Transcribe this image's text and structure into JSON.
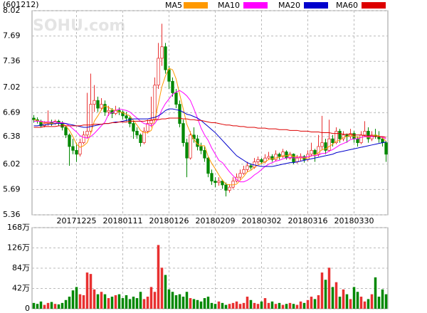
{
  "chart_data": {
    "type": "candlestick",
    "code": "(601212)",
    "watermark": "SOHU.com",
    "categories": [
      null,
      null,
      null,
      null,
      null,
      null,
      null,
      null,
      null,
      null,
      null,
      null,
      "20171225",
      null,
      null,
      null,
      null,
      null,
      null,
      null,
      null,
      null,
      null,
      null,
      null,
      "20180111",
      null,
      null,
      null,
      null,
      null,
      null,
      null,
      null,
      null,
      null,
      null,
      null,
      "20180126",
      null,
      null,
      null,
      null,
      null,
      null,
      null,
      null,
      null,
      null,
      null,
      null,
      "20180209",
      null,
      null,
      null,
      null,
      null,
      null,
      null,
      null,
      null,
      null,
      null,
      null,
      "20180302",
      null,
      null,
      null,
      null,
      null,
      null,
      null,
      null,
      null,
      null,
      null,
      null,
      "20180316",
      null,
      null,
      null,
      null,
      null,
      null,
      null,
      null,
      null,
      null,
      null,
      null,
      "20180330",
      null,
      null,
      null,
      null,
      null,
      null,
      null,
      null,
      null
    ],
    "ohlc": [
      [
        6.62,
        6.66,
        6.56,
        6.6
      ],
      [
        6.6,
        6.63,
        6.55,
        6.58
      ],
      [
        6.58,
        6.6,
        6.5,
        6.52
      ],
      [
        6.52,
        6.58,
        6.5,
        6.55
      ],
      [
        6.55,
        6.72,
        6.52,
        6.57
      ],
      [
        6.57,
        6.6,
        6.52,
        6.55
      ],
      [
        6.55,
        6.6,
        6.53,
        6.58
      ],
      [
        6.58,
        6.6,
        6.52,
        6.56
      ],
      [
        6.56,
        6.58,
        6.46,
        6.5
      ],
      [
        6.5,
        6.52,
        6.36,
        6.4
      ],
      [
        6.4,
        6.42,
        6.0,
        6.25
      ],
      [
        6.25,
        6.35,
        6.15,
        6.2
      ],
      [
        6.2,
        6.3,
        6.05,
        6.15
      ],
      [
        6.15,
        6.35,
        6.12,
        6.3
      ],
      [
        6.3,
        6.45,
        6.28,
        6.4
      ],
      [
        6.4,
        6.95,
        6.35,
        6.45
      ],
      [
        6.45,
        7.2,
        6.42,
        6.8
      ],
      [
        6.8,
        7.05,
        6.7,
        6.85
      ],
      [
        6.85,
        6.9,
        6.7,
        6.75
      ],
      [
        6.75,
        6.88,
        6.72,
        6.8
      ],
      [
        6.8,
        6.85,
        6.65,
        6.7
      ],
      [
        6.7,
        6.78,
        6.65,
        6.72
      ],
      [
        6.72,
        6.75,
        6.62,
        6.68
      ],
      [
        6.68,
        6.78,
        6.66,
        6.72
      ],
      [
        6.72,
        6.76,
        6.66,
        6.7
      ],
      [
        6.7,
        6.72,
        6.6,
        6.65
      ],
      [
        6.65,
        6.7,
        6.58,
        6.62
      ],
      [
        6.62,
        6.65,
        6.5,
        6.55
      ],
      [
        6.55,
        6.58,
        6.35,
        6.45
      ],
      [
        6.45,
        6.5,
        6.35,
        6.4
      ],
      [
        6.4,
        6.42,
        6.25,
        6.3
      ],
      [
        6.3,
        6.5,
        6.28,
        6.45
      ],
      [
        6.45,
        6.6,
        6.42,
        6.55
      ],
      [
        6.55,
        6.9,
        6.5,
        6.6
      ],
      [
        6.6,
        7.15,
        6.58,
        7.05
      ],
      [
        7.05,
        7.6,
        7.0,
        7.4
      ],
      [
        7.4,
        7.85,
        7.3,
        7.55
      ],
      [
        7.55,
        7.6,
        7.2,
        7.25
      ],
      [
        7.25,
        7.3,
        7.0,
        7.1
      ],
      [
        7.1,
        7.15,
        6.9,
        6.95
      ],
      [
        6.95,
        7.0,
        6.75,
        6.8
      ],
      [
        6.8,
        6.85,
        6.5,
        6.55
      ],
      [
        6.55,
        6.6,
        6.25,
        6.3
      ],
      [
        6.3,
        6.35,
        5.85,
        6.1
      ],
      [
        6.1,
        6.45,
        6.08,
        6.4
      ],
      [
        6.4,
        6.5,
        6.3,
        6.35
      ],
      [
        6.35,
        6.4,
        6.2,
        6.25
      ],
      [
        6.25,
        6.3,
        6.15,
        6.2
      ],
      [
        6.2,
        6.25,
        6.05,
        6.1
      ],
      [
        6.1,
        6.12,
        5.85,
        5.9
      ],
      [
        5.9,
        5.95,
        5.75,
        5.8
      ],
      [
        5.8,
        5.85,
        5.72,
        5.78
      ],
      [
        5.78,
        5.85,
        5.74,
        5.8
      ],
      [
        5.8,
        5.82,
        5.7,
        5.75
      ],
      [
        5.75,
        5.78,
        5.6,
        5.68
      ],
      [
        5.68,
        5.76,
        5.65,
        5.72
      ],
      [
        5.72,
        5.85,
        5.7,
        5.8
      ],
      [
        5.8,
        5.9,
        5.78,
        5.85
      ],
      [
        5.85,
        5.95,
        5.82,
        5.9
      ],
      [
        5.9,
        6.0,
        5.88,
        5.95
      ],
      [
        5.95,
        6.05,
        5.92,
        6.0
      ],
      [
        6.0,
        6.03,
        5.95,
        5.98
      ],
      [
        5.98,
        6.1,
        5.96,
        6.05
      ],
      [
        6.05,
        6.12,
        6.02,
        6.08
      ],
      [
        6.08,
        6.1,
        6.02,
        6.05
      ],
      [
        6.05,
        6.15,
        6.03,
        6.1
      ],
      [
        6.1,
        6.18,
        6.08,
        6.12
      ],
      [
        6.12,
        6.15,
        6.05,
        6.08
      ],
      [
        6.08,
        6.2,
        6.06,
        6.15
      ],
      [
        6.15,
        6.17,
        6.08,
        6.12
      ],
      [
        6.12,
        6.22,
        6.1,
        6.18
      ],
      [
        6.18,
        6.2,
        6.08,
        6.1
      ],
      [
        6.1,
        6.18,
        6.08,
        6.15
      ],
      [
        6.15,
        6.16,
        6.02,
        6.05
      ],
      [
        6.05,
        6.14,
        6.03,
        6.1
      ],
      [
        6.1,
        6.16,
        6.06,
        6.12
      ],
      [
        6.12,
        6.14,
        6.04,
        6.08
      ],
      [
        6.08,
        6.2,
        6.06,
        6.15
      ],
      [
        6.15,
        6.3,
        6.12,
        6.2
      ],
      [
        6.2,
        6.22,
        6.05,
        6.15
      ],
      [
        6.15,
        6.4,
        6.12,
        6.25
      ],
      [
        6.25,
        6.65,
        6.2,
        6.3
      ],
      [
        6.3,
        6.35,
        6.15,
        6.2
      ],
      [
        6.2,
        6.6,
        6.18,
        6.35
      ],
      [
        6.35,
        6.4,
        6.25,
        6.3
      ],
      [
        6.3,
        6.5,
        6.28,
        6.45
      ],
      [
        6.45,
        6.48,
        6.3,
        6.35
      ],
      [
        6.35,
        6.45,
        6.32,
        6.4
      ],
      [
        6.4,
        6.42,
        6.3,
        6.38
      ],
      [
        6.38,
        6.48,
        6.35,
        6.42
      ],
      [
        6.42,
        6.45,
        6.3,
        6.35
      ],
      [
        6.35,
        6.38,
        6.25,
        6.3
      ],
      [
        6.3,
        6.45,
        6.28,
        6.4
      ],
      [
        6.4,
        6.58,
        6.38,
        6.45
      ],
      [
        6.45,
        6.5,
        6.3,
        6.35
      ],
      [
        6.35,
        6.45,
        6.32,
        6.4
      ],
      [
        6.4,
        6.48,
        6.35,
        6.38
      ],
      [
        6.38,
        6.45,
        6.3,
        6.35
      ],
      [
        6.35,
        6.38,
        6.25,
        6.3
      ],
      [
        6.3,
        6.32,
        6.05,
        6.15
      ]
    ],
    "volume": [
      12,
      10,
      15,
      8,
      12,
      14,
      10,
      9,
      12,
      18,
      25,
      38,
      45,
      30,
      28,
      75,
      72,
      40,
      30,
      35,
      30,
      22,
      25,
      28,
      30,
      22,
      28,
      20,
      25,
      22,
      35,
      20,
      25,
      45,
      35,
      132,
      85,
      70,
      40,
      35,
      28,
      30,
      25,
      35,
      22,
      20,
      18,
      15,
      22,
      25,
      12,
      10,
      15,
      12,
      8,
      10,
      12,
      15,
      10,
      12,
      25,
      18,
      12,
      10,
      15,
      22,
      12,
      15,
      10,
      12,
      8,
      10,
      12,
      10,
      8,
      15,
      12,
      18,
      25,
      20,
      28,
      75,
      60,
      85,
      45,
      55,
      25,
      40,
      30,
      20,
      45,
      35,
      25,
      15,
      20,
      30,
      65,
      25,
      40,
      30
    ],
    "up_color": "#e83030",
    "down_color": "#008800",
    "ylim": [
      5.36,
      8.02
    ],
    "yticks": [
      8.02,
      7.69,
      7.36,
      7.02,
      6.69,
      6.38,
      6.02,
      5.69,
      5.36
    ],
    "volume_ylim": [
      0,
      168
    ],
    "volume_yticks": [
      {
        "value": 168,
        "label": "168万"
      },
      {
        "value": 126,
        "label": "126万"
      },
      {
        "value": 84,
        "label": "84万"
      },
      {
        "value": 42,
        "label": "42万"
      },
      0
    ],
    "grid": true,
    "series": [
      {
        "name": "MA5",
        "color": "#ff9900",
        "values": [
          6.6,
          6.59,
          6.57,
          6.56,
          6.56,
          6.55,
          6.55,
          6.56,
          6.55,
          6.52,
          6.46,
          6.38,
          6.28,
          6.24,
          6.26,
          6.3,
          6.42,
          6.58,
          6.65,
          6.73,
          6.78,
          6.76,
          6.73,
          6.72,
          6.7,
          6.69,
          6.67,
          6.65,
          6.59,
          6.53,
          6.46,
          6.43,
          6.43,
          6.46,
          6.59,
          6.81,
          7.03,
          7.17,
          7.27,
          7.25,
          7.13,
          6.93,
          6.74,
          6.54,
          6.43,
          6.34,
          6.28,
          6.26,
          6.26,
          6.12,
          6.03,
          5.96,
          5.88,
          5.81,
          5.76,
          5.75,
          5.75,
          5.76,
          5.81,
          5.86,
          5.92,
          5.94,
          5.98,
          6.01,
          6.03,
          6.05,
          6.08,
          6.09,
          6.1,
          6.11,
          6.13,
          6.13,
          6.14,
          6.12,
          6.12,
          6.1,
          6.1,
          6.1,
          6.13,
          6.14,
          6.17,
          6.21,
          6.22,
          6.25,
          6.28,
          6.32,
          6.33,
          6.37,
          6.38,
          6.4,
          6.38,
          6.37,
          6.37,
          6.38,
          6.37,
          6.38,
          6.4,
          6.39,
          6.36,
          6.32
        ]
      },
      {
        "name": "MA10",
        "color": "#ff00ff",
        "values": [
          6.58,
          6.58,
          6.58,
          6.57,
          6.57,
          6.57,
          6.57,
          6.56,
          6.56,
          6.55,
          6.52,
          6.48,
          6.44,
          6.39,
          6.37,
          6.36,
          6.38,
          6.42,
          6.47,
          6.52,
          6.57,
          6.67,
          6.69,
          6.72,
          6.74,
          6.73,
          6.72,
          6.7,
          6.66,
          6.62,
          6.58,
          6.55,
          6.54,
          6.52,
          6.55,
          6.62,
          6.73,
          6.81,
          6.87,
          6.93,
          6.96,
          6.98,
          6.95,
          6.91,
          6.85,
          6.74,
          6.62,
          6.49,
          6.4,
          6.33,
          6.23,
          6.15,
          6.07,
          6.04,
          5.98,
          5.92,
          5.87,
          5.82,
          5.79,
          5.79,
          5.81,
          5.84,
          5.88,
          5.91,
          5.95,
          5.99,
          6.02,
          6.04,
          6.06,
          6.07,
          6.09,
          6.1,
          6.11,
          6.1,
          6.11,
          6.11,
          6.11,
          6.12,
          6.13,
          6.13,
          6.14,
          6.16,
          6.16,
          6.19,
          6.21,
          6.24,
          6.27,
          6.29,
          6.31,
          6.34,
          6.35,
          6.35,
          6.37,
          6.38,
          6.38,
          6.38,
          6.38,
          6.38,
          6.37,
          6.35
        ]
      },
      {
        "name": "MA20",
        "color": "#0000cc",
        "values": [
          6.52,
          6.52,
          6.53,
          6.53,
          6.54,
          6.54,
          6.55,
          6.55,
          6.55,
          6.55,
          6.54,
          6.53,
          6.52,
          6.51,
          6.5,
          6.5,
          6.51,
          6.52,
          6.53,
          6.54,
          6.55,
          6.55,
          6.56,
          6.57,
          6.57,
          6.58,
          6.59,
          6.6,
          6.61,
          6.61,
          6.61,
          6.61,
          6.61,
          6.62,
          6.63,
          6.65,
          6.68,
          6.72,
          6.74,
          6.74,
          6.73,
          6.72,
          6.7,
          6.67,
          6.66,
          6.64,
          6.62,
          6.59,
          6.55,
          6.51,
          6.47,
          6.43,
          6.38,
          6.33,
          6.28,
          6.23,
          6.18,
          6.13,
          6.1,
          6.07,
          6.04,
          6.02,
          6.01,
          6.0,
          5.99,
          5.99,
          5.99,
          5.99,
          6.0,
          6.01,
          6.02,
          6.03,
          6.04,
          6.04,
          6.05,
          6.06,
          6.07,
          6.08,
          6.09,
          6.1,
          6.11,
          6.12,
          6.13,
          6.14,
          6.15,
          6.17,
          6.18,
          6.19,
          6.2,
          6.21,
          6.22,
          6.23,
          6.24,
          6.25,
          6.26,
          6.27,
          6.28,
          6.29,
          6.3,
          6.31
        ]
      },
      {
        "name": "MA60",
        "color": "#dd0000",
        "values": [
          6.5,
          6.5,
          6.5,
          6.51,
          6.51,
          6.51,
          6.51,
          6.52,
          6.52,
          6.52,
          6.52,
          6.52,
          6.52,
          6.52,
          6.53,
          6.53,
          6.53,
          6.54,
          6.54,
          6.54,
          6.55,
          6.55,
          6.56,
          6.56,
          6.57,
          6.57,
          6.57,
          6.58,
          6.58,
          6.58,
          6.58,
          6.58,
          6.59,
          6.59,
          6.6,
          6.6,
          6.61,
          6.61,
          6.62,
          6.62,
          6.62,
          6.62,
          6.61,
          6.61,
          6.6,
          6.6,
          6.59,
          6.59,
          6.58,
          6.57,
          6.56,
          6.56,
          6.55,
          6.54,
          6.53,
          6.53,
          6.52,
          6.52,
          6.51,
          6.51,
          6.5,
          6.5,
          6.5,
          6.49,
          6.49,
          6.49,
          6.48,
          6.48,
          6.48,
          6.47,
          6.47,
          6.47,
          6.46,
          6.46,
          6.46,
          6.45,
          6.45,
          6.45,
          6.44,
          6.44,
          6.44,
          6.43,
          6.43,
          6.43,
          6.42,
          6.42,
          6.42,
          6.41,
          6.41,
          6.41,
          6.4,
          6.4,
          6.4,
          6.39,
          6.39,
          6.39,
          6.38,
          6.38,
          6.38,
          6.37
        ]
      }
    ]
  }
}
